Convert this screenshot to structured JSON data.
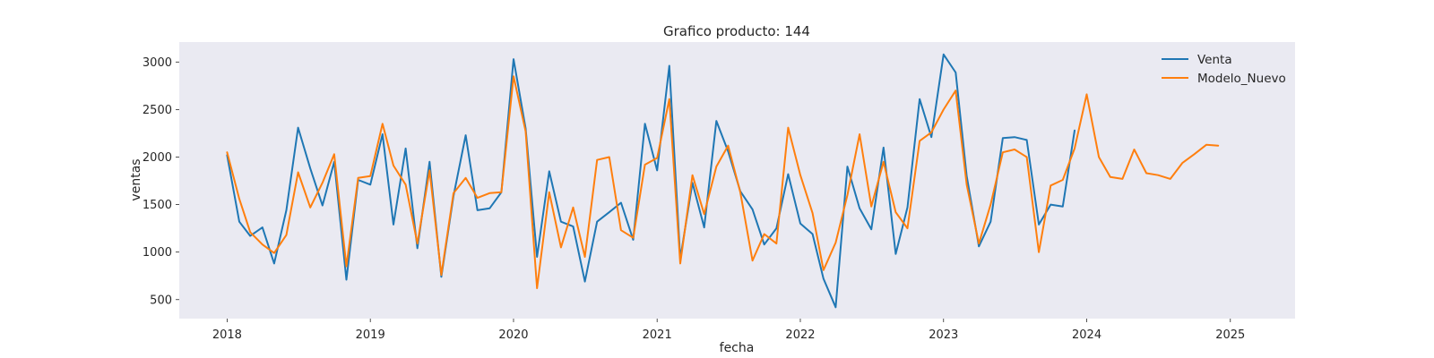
{
  "chart_data": {
    "type": "line",
    "title": "Grafico producto: 144",
    "xlabel": "fecha",
    "ylabel": "ventas",
    "x_ticks": [
      "2018",
      "2019",
      "2020",
      "2021",
      "2022",
      "2023",
      "2024",
      "2025"
    ],
    "y_ticks": [
      "500",
      "1000",
      "1500",
      "2000",
      "2500",
      "3000"
    ],
    "xlim": [
      "2017-09-01",
      "2025-06-15"
    ],
    "ylim": [
      300,
      3210
    ],
    "grid": false,
    "plot_background": "#eaeaf2",
    "legend_position": "top-right",
    "series": [
      {
        "name": "Venta",
        "color": "#1f77b4",
        "points": [
          [
            "2018-01",
            2020
          ],
          [
            "2018-02",
            1320
          ],
          [
            "2018-03",
            1170
          ],
          [
            "2018-04",
            1260
          ],
          [
            "2018-05",
            880
          ],
          [
            "2018-06",
            1440
          ],
          [
            "2018-07",
            2310
          ],
          [
            "2018-08",
            1880
          ],
          [
            "2018-09",
            1490
          ],
          [
            "2018-10",
            1950
          ],
          [
            "2018-11",
            710
          ],
          [
            "2018-12",
            1760
          ],
          [
            "2019-01",
            1710
          ],
          [
            "2019-02",
            2240
          ],
          [
            "2019-03",
            1290
          ],
          [
            "2019-04",
            2090
          ],
          [
            "2019-05",
            1040
          ],
          [
            "2019-06",
            1950
          ],
          [
            "2019-07",
            740
          ],
          [
            "2019-08",
            1590
          ],
          [
            "2019-09",
            2230
          ],
          [
            "2019-10",
            1440
          ],
          [
            "2019-11",
            1460
          ],
          [
            "2019-12",
            1630
          ],
          [
            "2020-01",
            3030
          ],
          [
            "2020-02",
            2300
          ],
          [
            "2020-03",
            950
          ],
          [
            "2020-04",
            1850
          ],
          [
            "2020-05",
            1320
          ],
          [
            "2020-06",
            1270
          ],
          [
            "2020-07",
            690
          ],
          [
            "2020-08",
            1320
          ],
          [
            "2020-09",
            1420
          ],
          [
            "2020-10",
            1520
          ],
          [
            "2020-11",
            1130
          ],
          [
            "2020-12",
            2350
          ],
          [
            "2021-01",
            1860
          ],
          [
            "2021-02",
            2960
          ],
          [
            "2021-03",
            930
          ],
          [
            "2021-04",
            1730
          ],
          [
            "2021-05",
            1260
          ],
          [
            "2021-06",
            2380
          ],
          [
            "2021-07",
            2060
          ],
          [
            "2021-08",
            1640
          ],
          [
            "2021-09",
            1450
          ],
          [
            "2021-10",
            1080
          ],
          [
            "2021-11",
            1250
          ],
          [
            "2021-12",
            1820
          ],
          [
            "2022-01",
            1300
          ],
          [
            "2022-02",
            1190
          ],
          [
            "2022-03",
            720
          ],
          [
            "2022-04",
            420
          ],
          [
            "2022-05",
            1900
          ],
          [
            "2022-06",
            1460
          ],
          [
            "2022-07",
            1240
          ],
          [
            "2022-08",
            2100
          ],
          [
            "2022-09",
            980
          ],
          [
            "2022-10",
            1470
          ],
          [
            "2022-11",
            2610
          ],
          [
            "2022-12",
            2210
          ],
          [
            "2023-01",
            3080
          ],
          [
            "2023-02",
            2890
          ],
          [
            "2023-03",
            1800
          ],
          [
            "2023-04",
            1060
          ],
          [
            "2023-05",
            1320
          ],
          [
            "2023-06",
            2200
          ],
          [
            "2023-07",
            2210
          ],
          [
            "2023-08",
            2180
          ],
          [
            "2023-09",
            1290
          ],
          [
            "2023-10",
            1500
          ],
          [
            "2023-11",
            1480
          ],
          [
            "2023-12",
            2280
          ]
        ]
      },
      {
        "name": "Modelo_Nuevo",
        "color": "#ff7f0e",
        "points": [
          [
            "2018-01",
            2050
          ],
          [
            "2018-02",
            1560
          ],
          [
            "2018-03",
            1210
          ],
          [
            "2018-04",
            1080
          ],
          [
            "2018-05",
            990
          ],
          [
            "2018-06",
            1180
          ],
          [
            "2018-07",
            1840
          ],
          [
            "2018-08",
            1470
          ],
          [
            "2018-09",
            1730
          ],
          [
            "2018-10",
            2030
          ],
          [
            "2018-11",
            850
          ],
          [
            "2018-12",
            1780
          ],
          [
            "2019-01",
            1800
          ],
          [
            "2019-02",
            2350
          ],
          [
            "2019-03",
            1910
          ],
          [
            "2019-04",
            1710
          ],
          [
            "2019-05",
            1090
          ],
          [
            "2019-06",
            1860
          ],
          [
            "2019-07",
            760
          ],
          [
            "2019-08",
            1620
          ],
          [
            "2019-09",
            1780
          ],
          [
            "2019-10",
            1570
          ],
          [
            "2019-11",
            1620
          ],
          [
            "2019-12",
            1630
          ],
          [
            "2020-01",
            2850
          ],
          [
            "2020-02",
            2270
          ],
          [
            "2020-03",
            620
          ],
          [
            "2020-04",
            1630
          ],
          [
            "2020-05",
            1050
          ],
          [
            "2020-06",
            1470
          ],
          [
            "2020-07",
            950
          ],
          [
            "2020-08",
            1970
          ],
          [
            "2020-09",
            2000
          ],
          [
            "2020-10",
            1230
          ],
          [
            "2020-11",
            1150
          ],
          [
            "2020-12",
            1920
          ],
          [
            "2021-01",
            1990
          ],
          [
            "2021-02",
            2610
          ],
          [
            "2021-03",
            880
          ],
          [
            "2021-04",
            1810
          ],
          [
            "2021-05",
            1400
          ],
          [
            "2021-06",
            1900
          ],
          [
            "2021-07",
            2120
          ],
          [
            "2021-08",
            1630
          ],
          [
            "2021-09",
            910
          ],
          [
            "2021-10",
            1190
          ],
          [
            "2021-11",
            1090
          ],
          [
            "2021-12",
            2310
          ],
          [
            "2022-01",
            1810
          ],
          [
            "2022-02",
            1410
          ],
          [
            "2022-03",
            810
          ],
          [
            "2022-04",
            1100
          ],
          [
            "2022-05",
            1600
          ],
          [
            "2022-06",
            2240
          ],
          [
            "2022-07",
            1480
          ],
          [
            "2022-08",
            1950
          ],
          [
            "2022-09",
            1420
          ],
          [
            "2022-10",
            1250
          ],
          [
            "2022-11",
            2170
          ],
          [
            "2022-12",
            2260
          ],
          [
            "2023-01",
            2500
          ],
          [
            "2023-02",
            2700
          ],
          [
            "2023-03",
            1710
          ],
          [
            "2023-04",
            1090
          ],
          [
            "2023-05",
            1500
          ],
          [
            "2023-06",
            2050
          ],
          [
            "2023-07",
            2080
          ],
          [
            "2023-08",
            2000
          ],
          [
            "2023-09",
            1000
          ],
          [
            "2023-10",
            1700
          ],
          [
            "2023-11",
            1760
          ],
          [
            "2023-12",
            2090
          ],
          [
            "2024-01",
            2660
          ],
          [
            "2024-02",
            2000
          ],
          [
            "2024-03",
            1790
          ],
          [
            "2024-04",
            1770
          ],
          [
            "2024-05",
            2080
          ],
          [
            "2024-06",
            1830
          ],
          [
            "2024-07",
            1810
          ],
          [
            "2024-08",
            1770
          ],
          [
            "2024-09",
            1940
          ],
          [
            "2024-10",
            2030
          ],
          [
            "2024-11",
            2130
          ],
          [
            "2024-12",
            2120
          ]
        ]
      }
    ]
  }
}
